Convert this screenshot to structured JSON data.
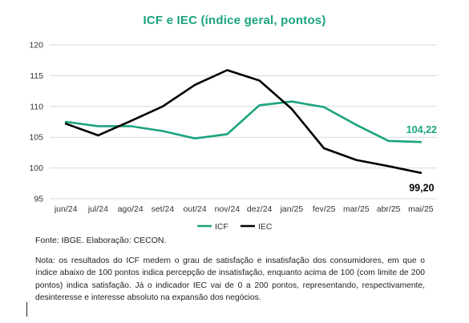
{
  "title": "ICF e IEC (índice geral, pontos)",
  "colors": {
    "icf": "#1aa37f",
    "iec": "#000000",
    "grid": "#d9d9d9"
  },
  "chart_data": {
    "type": "line",
    "title": "ICF e IEC (índice geral, pontos)",
    "categories": [
      "jun/24",
      "jul/24",
      "ago/24",
      "set/24",
      "out/24",
      "nov/24",
      "dez/24",
      "jan/25",
      "fev/25",
      "mar/25",
      "abr/25",
      "mai/25"
    ],
    "series": [
      {
        "name": "ICF",
        "color": "#1aa37f",
        "values": [
          107.5,
          106.8,
          106.8,
          106.0,
          104.8,
          105.5,
          110.2,
          110.8,
          109.9,
          107.0,
          104.4,
          104.22
        ]
      },
      {
        "name": "IEC",
        "color": "#000000",
        "values": [
          107.2,
          105.3,
          107.6,
          110.0,
          113.5,
          115.9,
          114.2,
          109.6,
          103.2,
          101.3,
          100.3,
          99.2
        ]
      }
    ],
    "ylim": [
      95,
      120
    ],
    "yticks": [
      95,
      100,
      105,
      110,
      115,
      120
    ],
    "grid": "horizontal",
    "legend": "bottom",
    "data_labels": [
      {
        "series": "ICF",
        "category": "mai/25",
        "text": "104,22"
      },
      {
        "series": "IEC",
        "category": "mai/25",
        "text": "99,20"
      }
    ]
  },
  "source": "Fonte: IBGE. Elaboração: CECON.",
  "note": "Nota: os resultados do ICF medem o grau de satisfação e insatisfação dos consumidores, em que o índice abaixo de 100 pontos indica percepção de insatisfação, enquanto acima de 100 (com limite de 200 pontos) indica satisfação. Já o indicador IEC vai de 0 a 200 pontos, representando, respectivamente, desinteresse e interesse absoluto na expansão dos negócios."
}
